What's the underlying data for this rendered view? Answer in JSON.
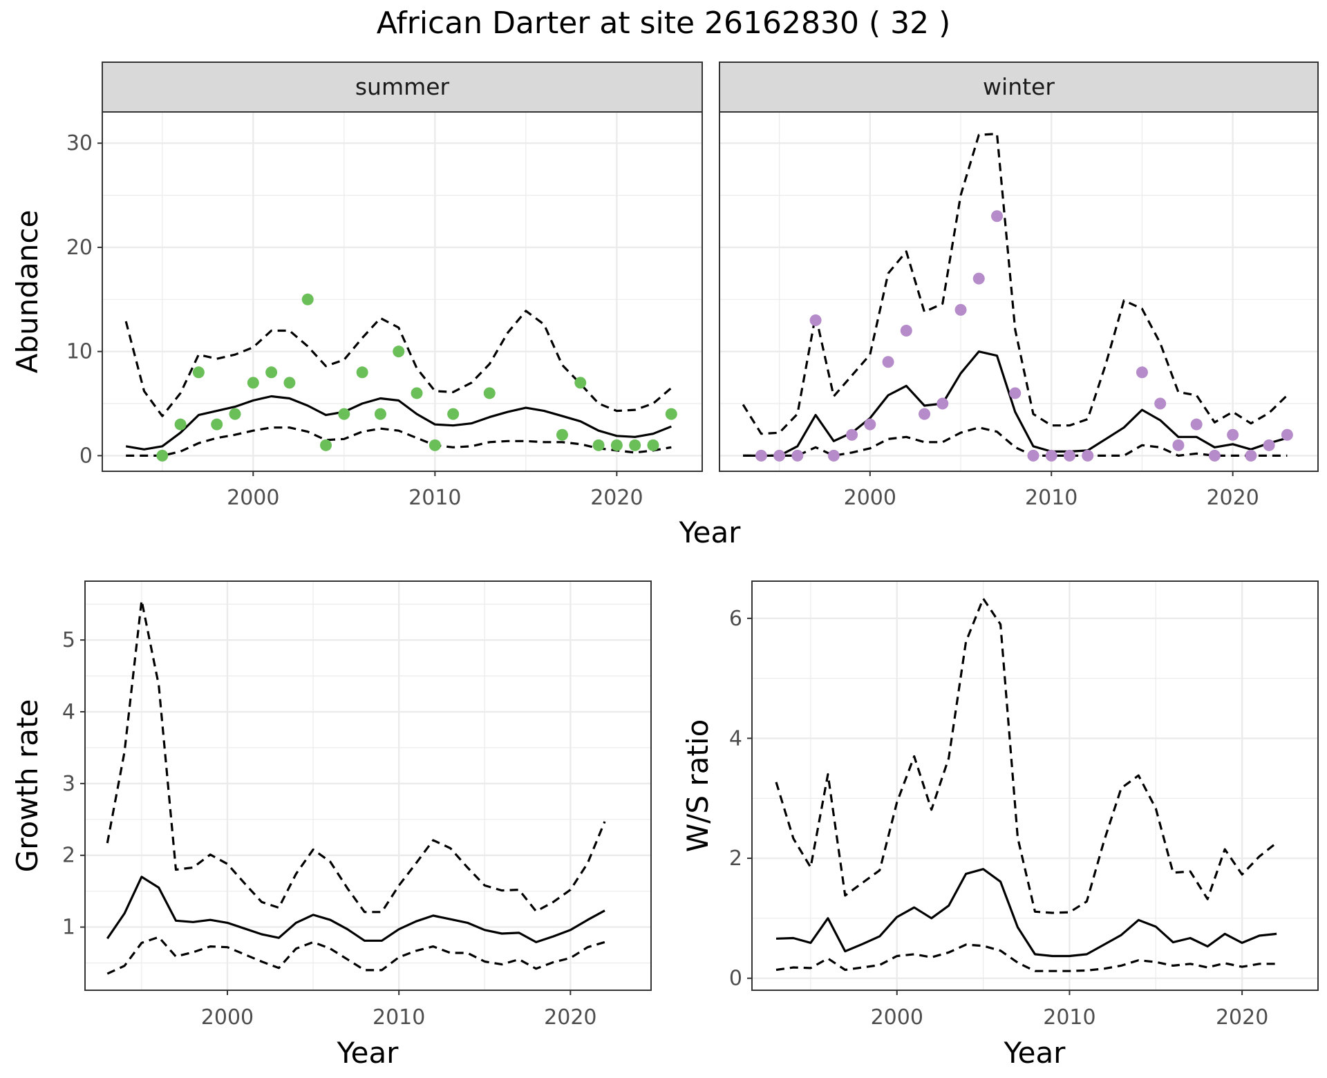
{
  "title": "African Darter at site 26162830 ( 32 )",
  "colors": {
    "summer_points": "#6BBF59",
    "winter_points": "#B58BC9",
    "line": "#000000",
    "strip_fill": "#D9D9D9",
    "grid": "#EBEBEB",
    "panel_border": "#333333"
  },
  "chart_data": [
    {
      "id": "abundance",
      "type": "line",
      "ylabel": "Abundance",
      "xlabel": "Year",
      "x_ticks": [
        2000,
        2010,
        2020
      ],
      "y_ticks": [
        0,
        10,
        20,
        30
      ],
      "xlim": [
        1991.7,
        2024.7
      ],
      "ylim": [
        -1.5,
        33
      ],
      "grid": true,
      "facets": [
        {
          "strip": "summer",
          "point_color": "#6BBF59",
          "points": {
            "x": [
              1995,
              1996,
              1997,
              1998,
              1999,
              2000,
              2001,
              2002,
              2003,
              2004,
              2005,
              2006,
              2007,
              2008,
              2009,
              2010,
              2011,
              2013,
              2017,
              2018,
              2019,
              2020,
              2021,
              2022,
              2023
            ],
            "y": [
              0,
              3,
              8,
              3,
              4,
              7,
              8,
              7,
              15,
              1,
              4,
              8,
              4,
              10,
              6,
              1,
              4,
              6,
              2,
              7,
              1,
              1,
              1,
              1,
              4
            ]
          },
          "series": [
            {
              "style": "solid",
              "x": [
                1993,
                1994,
                1995,
                1996,
                1997,
                1998,
                1999,
                2000,
                2001,
                2002,
                2003,
                2004,
                2005,
                2006,
                2007,
                2008,
                2009,
                2010,
                2011,
                2012,
                2013,
                2014,
                2015,
                2016,
                2017,
                2018,
                2019,
                2020,
                2021,
                2022,
                2023
              ],
              "y": [
                0.9,
                0.6,
                0.9,
                2.2,
                3.9,
                4.3,
                4.7,
                5.3,
                5.7,
                5.5,
                4.8,
                3.9,
                4.2,
                5.0,
                5.5,
                5.3,
                4.0,
                3.0,
                2.9,
                3.1,
                3.7,
                4.2,
                4.6,
                4.3,
                3.8,
                3.3,
                2.4,
                1.9,
                1.8,
                2.1,
                2.8
              ]
            },
            {
              "style": "dashed",
              "x": [
                1993,
                1994,
                1995,
                1996,
                1997,
                1998,
                1999,
                2000,
                2001,
                2002,
                2003,
                2004,
                2005,
                2006,
                2007,
                2008,
                2009,
                2010,
                2011,
                2012,
                2013,
                2014,
                2015,
                2016,
                2017,
                2018,
                2019,
                2020,
                2021,
                2022,
                2023
              ],
              "y": [
                12.9,
                6.2,
                3.8,
                6.0,
                9.7,
                9.3,
                9.7,
                10.4,
                12.0,
                12.0,
                10.5,
                8.6,
                9.2,
                11.3,
                13.2,
                12.3,
                8.4,
                6.2,
                6.1,
                7.0,
                8.8,
                11.8,
                13.9,
                12.6,
                8.7,
                6.9,
                5.0,
                4.3,
                4.4,
                5.0,
                6.5
              ]
            },
            {
              "style": "dashed",
              "x": [
                1993,
                1994,
                1995,
                1996,
                1997,
                1998,
                1999,
                2000,
                2001,
                2002,
                2003,
                2004,
                2005,
                2006,
                2007,
                2008,
                2009,
                2010,
                2011,
                2012,
                2013,
                2014,
                2015,
                2016,
                2017,
                2018,
                2019,
                2020,
                2021,
                2022,
                2023
              ],
              "y": [
                0,
                0,
                0,
                0.4,
                1.2,
                1.7,
                2.0,
                2.4,
                2.7,
                2.7,
                2.3,
                1.5,
                1.6,
                2.3,
                2.6,
                2.4,
                1.7,
                1.0,
                0.8,
                0.9,
                1.3,
                1.4,
                1.4,
                1.3,
                1.3,
                1.1,
                0.7,
                0.5,
                0.3,
                0.5,
                0.8
              ]
            }
          ]
        },
        {
          "strip": "winter",
          "point_color": "#B58BC9",
          "points": {
            "x": [
              1994,
              1995,
              1996,
              1997,
              1998,
              1999,
              2000,
              2001,
              2002,
              2003,
              2004,
              2005,
              2006,
              2007,
              2008,
              2009,
              2010,
              2011,
              2012,
              2015,
              2016,
              2017,
              2018,
              2019,
              2020,
              2021,
              2022,
              2023
            ],
            "y": [
              0,
              0,
              0,
              13,
              0,
              2,
              3,
              9,
              12,
              4,
              5,
              14,
              17,
              23,
              6,
              0,
              0,
              0,
              0,
              8,
              5,
              1,
              3,
              0,
              2,
              0,
              1,
              2
            ]
          },
          "series": [
            {
              "style": "solid",
              "x": [
                1993,
                1994,
                1995,
                1996,
                1997,
                1998,
                1999,
                2000,
                2001,
                2002,
                2003,
                2004,
                2005,
                2006,
                2007,
                2008,
                2009,
                2010,
                2011,
                2012,
                2013,
                2014,
                2015,
                2016,
                2017,
                2018,
                2019,
                2020,
                2021,
                2022,
                2023
              ],
              "y": [
                0,
                0,
                0,
                0.9,
                3.9,
                1.4,
                2.2,
                3.6,
                5.8,
                6.7,
                4.8,
                5.0,
                7.9,
                10.0,
                9.6,
                4.2,
                0.9,
                0.4,
                0.4,
                0.5,
                1.6,
                2.7,
                4.4,
                3.4,
                1.8,
                1.8,
                0.8,
                1.1,
                0.6,
                1.2,
                1.7
              ]
            },
            {
              "style": "dashed",
              "x": [
                1993,
                1994,
                1995,
                1996,
                1997,
                1998,
                1999,
                2000,
                2001,
                2002,
                2003,
                2004,
                2005,
                2006,
                2007,
                2008,
                2009,
                2010,
                2011,
                2012,
                2013,
                2014,
                2015,
                2016,
                2017,
                2018,
                2019,
                2020,
                2021,
                2022,
                2023
              ],
              "y": [
                4.9,
                2.1,
                2.2,
                4.0,
                13.5,
                5.7,
                7.7,
                9.7,
                17.5,
                19.6,
                13.8,
                14.6,
                25.0,
                30.8,
                30.9,
                12.1,
                4.0,
                2.9,
                2.9,
                3.5,
                8.8,
                14.9,
                14.1,
                10.8,
                6.1,
                5.8,
                3.2,
                4.2,
                3.1,
                4.1,
                5.8
              ]
            },
            {
              "style": "dashed",
              "x": [
                1993,
                1994,
                1995,
                1996,
                1997,
                1998,
                1999,
                2000,
                2001,
                2002,
                2003,
                2004,
                2005,
                2006,
                2007,
                2008,
                2009,
                2010,
                2011,
                2012,
                2013,
                2014,
                2015,
                2016,
                2017,
                2018,
                2019,
                2020,
                2021,
                2022,
                2023
              ],
              "y": [
                0,
                0,
                0,
                0,
                0.8,
                0,
                0.3,
                0.7,
                1.6,
                1.8,
                1.3,
                1.3,
                2.2,
                2.7,
                2.3,
                0.8,
                0,
                0,
                0,
                0,
                0,
                0,
                1.0,
                0.8,
                0,
                0.2,
                0,
                0,
                0,
                0,
                0
              ]
            }
          ]
        }
      ]
    },
    {
      "id": "growth",
      "type": "line",
      "ylabel": "Growth rate",
      "xlabel": "Year",
      "x_ticks": [
        2000,
        2010,
        2020
      ],
      "y_ticks": [
        1,
        2,
        3,
        4,
        5
      ],
      "xlim": [
        1991.7,
        2024.7
      ],
      "ylim": [
        0.12,
        5.82
      ],
      "grid": true,
      "series": [
        {
          "style": "solid",
          "x": [
            1993,
            1994,
            1995,
            1996,
            1997,
            1998,
            1999,
            2000,
            2001,
            2002,
            2003,
            2004,
            2005,
            2006,
            2007,
            2008,
            2009,
            2010,
            2011,
            2012,
            2013,
            2014,
            2015,
            2016,
            2017,
            2018,
            2019,
            2020,
            2021,
            2022
          ],
          "y": [
            0.84,
            1.19,
            1.7,
            1.55,
            1.09,
            1.07,
            1.1,
            1.06,
            0.98,
            0.9,
            0.85,
            1.06,
            1.17,
            1.1,
            0.97,
            0.81,
            0.81,
            0.97,
            1.08,
            1.16,
            1.11,
            1.06,
            0.96,
            0.91,
            0.92,
            0.79,
            0.87,
            0.96,
            1.1,
            1.23
          ]
        },
        {
          "style": "dashed",
          "x": [
            1993,
            1994,
            1995,
            1996,
            1997,
            1998,
            1999,
            2000,
            2001,
            2002,
            2003,
            2004,
            2005,
            2006,
            2007,
            2008,
            2009,
            2010,
            2011,
            2012,
            2013,
            2014,
            2015,
            2016,
            2017,
            2018,
            2019,
            2020,
            2021,
            2022
          ],
          "y": [
            2.17,
            3.44,
            5.55,
            4.37,
            1.8,
            1.83,
            2.01,
            1.88,
            1.61,
            1.35,
            1.27,
            1.74,
            2.08,
            1.91,
            1.54,
            1.21,
            1.21,
            1.58,
            1.89,
            2.21,
            2.1,
            1.83,
            1.58,
            1.51,
            1.52,
            1.22,
            1.35,
            1.52,
            1.89,
            2.47
          ]
        },
        {
          "style": "dashed",
          "x": [
            1993,
            1994,
            1995,
            1996,
            1997,
            1998,
            1999,
            2000,
            2001,
            2002,
            2003,
            2004,
            2005,
            2006,
            2007,
            2008,
            2009,
            2010,
            2011,
            2012,
            2013,
            2014,
            2015,
            2016,
            2017,
            2018,
            2019,
            2020,
            2021,
            2022
          ],
          "y": [
            0.35,
            0.46,
            0.78,
            0.86,
            0.59,
            0.65,
            0.73,
            0.72,
            0.62,
            0.52,
            0.43,
            0.7,
            0.79,
            0.7,
            0.55,
            0.4,
            0.4,
            0.58,
            0.67,
            0.73,
            0.64,
            0.64,
            0.52,
            0.48,
            0.55,
            0.42,
            0.51,
            0.57,
            0.72,
            0.79
          ]
        }
      ]
    },
    {
      "id": "ws_ratio",
      "type": "line",
      "ylabel": "W/S ratio",
      "xlabel": "Year",
      "x_ticks": [
        2000,
        2010,
        2020
      ],
      "y_ticks": [
        0,
        2,
        4,
        6
      ],
      "xlim": [
        1991.6,
        2024.4
      ],
      "ylim": [
        -0.2,
        6.62
      ],
      "grid": true,
      "series": [
        {
          "style": "solid",
          "x": [
            1993,
            1994,
            1995,
            1996,
            1997,
            1998,
            1999,
            2000,
            2001,
            2002,
            2003,
            2004,
            2005,
            2006,
            2007,
            2008,
            2009,
            2010,
            2011,
            2012,
            2013,
            2014,
            2015,
            2016,
            2017,
            2018,
            2019,
            2020,
            2021,
            2022
          ],
          "y": [
            0.66,
            0.67,
            0.59,
            1.0,
            0.45,
            0.57,
            0.7,
            1.02,
            1.18,
            1.0,
            1.21,
            1.74,
            1.82,
            1.61,
            0.85,
            0.4,
            0.37,
            0.37,
            0.4,
            0.56,
            0.72,
            0.97,
            0.86,
            0.6,
            0.67,
            0.53,
            0.74,
            0.59,
            0.71,
            0.74
          ]
        },
        {
          "style": "dashed",
          "x": [
            1993,
            1994,
            1995,
            1996,
            1997,
            1998,
            1999,
            2000,
            2001,
            2002,
            2003,
            2004,
            2005,
            2006,
            2007,
            2008,
            2009,
            2010,
            2011,
            2012,
            2013,
            2014,
            2015,
            2016,
            2017,
            2018,
            2019,
            2020,
            2021,
            2022
          ],
          "y": [
            3.27,
            2.33,
            1.85,
            3.4,
            1.38,
            1.59,
            1.8,
            2.93,
            3.7,
            2.81,
            3.67,
            5.61,
            6.33,
            5.9,
            2.34,
            1.11,
            1.09,
            1.1,
            1.28,
            2.29,
            3.17,
            3.38,
            2.83,
            1.76,
            1.78,
            1.32,
            2.15,
            1.73,
            2.03,
            2.26
          ]
        },
        {
          "style": "dashed",
          "x": [
            1993,
            1994,
            1995,
            1996,
            1997,
            1998,
            1999,
            2000,
            2001,
            2002,
            2003,
            2004,
            2005,
            2006,
            2007,
            2008,
            2009,
            2010,
            2011,
            2012,
            2013,
            2014,
            2015,
            2016,
            2017,
            2018,
            2019,
            2020,
            2021,
            2022
          ],
          "y": [
            0.14,
            0.18,
            0.17,
            0.33,
            0.14,
            0.18,
            0.22,
            0.37,
            0.4,
            0.35,
            0.43,
            0.56,
            0.54,
            0.46,
            0.26,
            0.12,
            0.12,
            0.12,
            0.13,
            0.16,
            0.21,
            0.3,
            0.27,
            0.21,
            0.24,
            0.18,
            0.25,
            0.19,
            0.24,
            0.24
          ]
        }
      ]
    }
  ]
}
